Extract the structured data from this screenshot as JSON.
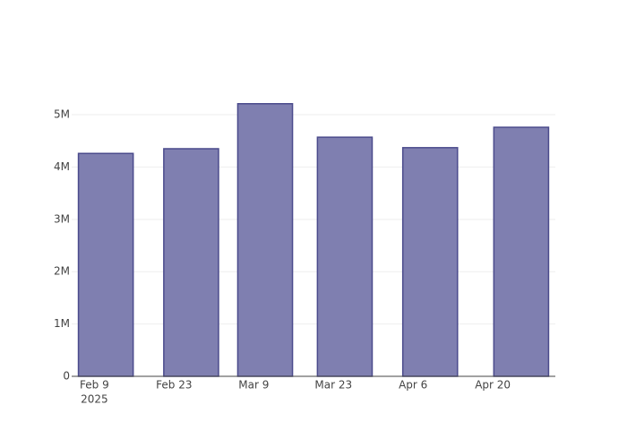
{
  "chart_data": {
    "type": "bar",
    "x": [
      "2025-02-11",
      "2025-02-26",
      "2025-03-11",
      "2025-03-25",
      "2025-04-09",
      "2025-04-25"
    ],
    "values": [
      4260000,
      4350000,
      5210000,
      4570000,
      4370000,
      4760000
    ],
    "color": "#7f7fb0",
    "edge_color": "#4b4b8c",
    "xlim": [
      "2025-02-05",
      "2025-05-01"
    ],
    "xticks": [
      {
        "value": "2025-02-09",
        "label": "Feb 9",
        "sublabel": "2025"
      },
      {
        "value": "2025-02-23",
        "label": "Feb 23"
      },
      {
        "value": "2025-03-09",
        "label": "Mar 9"
      },
      {
        "value": "2025-03-23",
        "label": "Mar 23"
      },
      {
        "value": "2025-04-06",
        "label": "Apr 6"
      },
      {
        "value": "2025-04-20",
        "label": "Apr 20"
      }
    ],
    "ylim": [
      0,
      5480000
    ],
    "yticks": [
      0,
      {
        "value": 1000000,
        "label": "1M"
      },
      {
        "value": 2000000,
        "label": "2M"
      },
      {
        "value": 3000000,
        "label": "3M"
      },
      {
        "value": 4000000,
        "label": "4M"
      },
      {
        "value": 5000000,
        "label": "5M"
      }
    ],
    "grid": true
  }
}
